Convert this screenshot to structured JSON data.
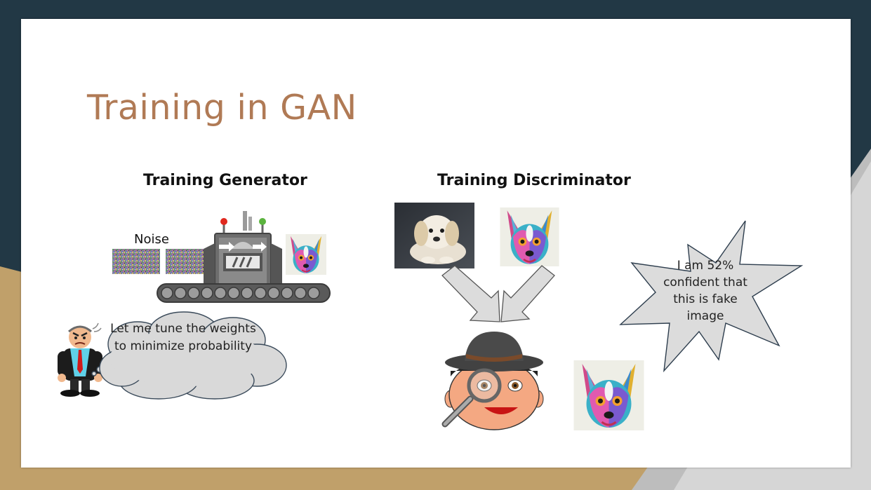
{
  "slide": {
    "title": "Training in GAN",
    "theme_colors": {
      "dark_band": "#223845",
      "gold_band": "#C0A06A",
      "grey_band": "#BDBDBD",
      "title_color": "#B07A55"
    }
  },
  "generator": {
    "heading": "Training Generator",
    "noise_label": "Noise",
    "thought_bubble": "Let me tune the weights to minimize probability"
  },
  "discriminator": {
    "heading": "Training Discriminator",
    "speech_bubble": "I am 52% confident that this is fake image"
  },
  "icons": [
    "angry-manager-icon",
    "thought-cloud-icon",
    "generator-machine-icon",
    "noise-image-icon",
    "fake-dog-image-icon",
    "real-puppy-image-icon",
    "arrow-down-icon",
    "detective-icon",
    "magnifying-glass-icon",
    "explosion-speech-bubble-icon"
  ]
}
